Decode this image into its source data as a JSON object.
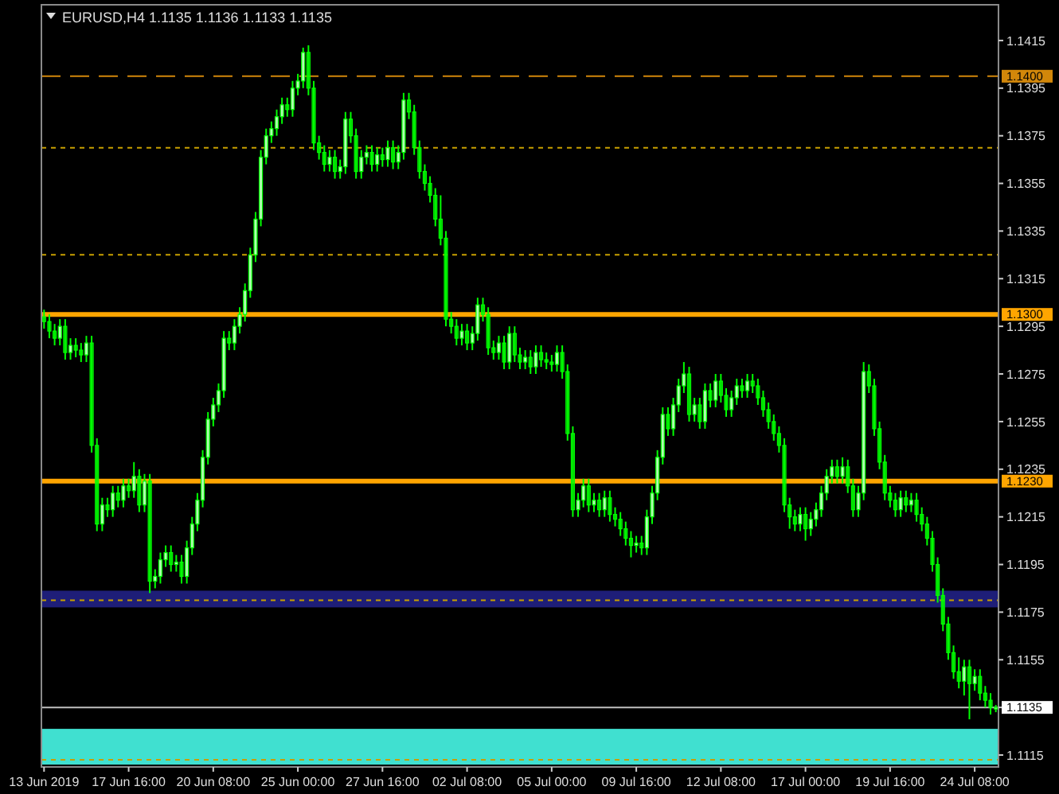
{
  "chart_data": {
    "type": "candlestick",
    "title": "EURUSD,H4  1.1135 1.1136 1.1133 1.1135",
    "categories": [
      "13 Jun 2019",
      null,
      null,
      null,
      null,
      null,
      null,
      null,
      null,
      null,
      null,
      null,
      null,
      null,
      null,
      null,
      "17 Jun 16:00",
      null,
      null,
      null,
      null,
      null,
      null,
      null,
      null,
      null,
      null,
      null,
      null,
      null,
      null,
      null,
      "20 Jun 08:00",
      null,
      null,
      null,
      null,
      null,
      null,
      null,
      null,
      null,
      null,
      null,
      null,
      null,
      null,
      null,
      "25 Jun 00:00",
      null,
      null,
      null,
      null,
      null,
      null,
      null,
      null,
      null,
      null,
      null,
      null,
      null,
      null,
      null,
      "27 Jun 16:00",
      null,
      null,
      null,
      null,
      null,
      null,
      null,
      null,
      null,
      null,
      null,
      null,
      null,
      null,
      null,
      "02 Jul 08:00",
      null,
      null,
      null,
      null,
      null,
      null,
      null,
      null,
      null,
      null,
      null,
      null,
      null,
      null,
      null,
      "05 Jul 00:00",
      null,
      null,
      null,
      null,
      null,
      null,
      null,
      null,
      null,
      null,
      null,
      null,
      null,
      null,
      null,
      "09 Jul 16:00",
      null,
      null,
      null,
      null,
      null,
      null,
      null,
      null,
      null,
      null,
      null,
      null,
      null,
      null,
      null,
      "12 Jul 08:00",
      null,
      null,
      null,
      null,
      null,
      null,
      null,
      null,
      null,
      null,
      null,
      null,
      null,
      null,
      null,
      "17 Jul 00:00",
      null,
      null,
      null,
      null,
      null,
      null,
      null,
      null,
      null,
      null,
      null,
      null,
      null,
      null,
      null,
      "19 Jul 16:00",
      null,
      null,
      null,
      null,
      null,
      null,
      null,
      null,
      null,
      null,
      null,
      null,
      null,
      null,
      null,
      "24 Jul 08:00",
      null,
      null,
      null,
      null
    ],
    "color": "#00ff00",
    "ohlc": [
      [
        1.1299,
        1.1302,
        1.1294,
        1.1297
      ],
      [
        1.1297,
        1.13,
        1.129,
        1.1293
      ],
      [
        1.1293,
        1.1296,
        1.1287,
        1.129
      ],
      [
        1.129,
        1.1298,
        1.1287,
        1.1295
      ],
      [
        1.1295,
        1.1298,
        1.1281,
        1.1284
      ],
      [
        1.1284,
        1.129,
        1.1281,
        1.1287
      ],
      [
        1.1287,
        1.129,
        1.1282,
        1.1285
      ],
      [
        1.1285,
        1.1288,
        1.128,
        1.1283
      ],
      [
        1.1283,
        1.1291,
        1.128,
        1.1288
      ],
      [
        1.1288,
        1.1291,
        1.1242,
        1.1245
      ],
      [
        1.1245,
        1.1248,
        1.1209,
        1.1212
      ],
      [
        1.1212,
        1.1223,
        1.1209,
        1.122
      ],
      [
        1.122,
        1.1223,
        1.1215,
        1.1218
      ],
      [
        1.1218,
        1.1228,
        1.1215,
        1.1225
      ],
      [
        1.1225,
        1.1228,
        1.1219,
        1.1222
      ],
      [
        1.1222,
        1.1231,
        1.1219,
        1.1228
      ],
      [
        1.1228,
        1.1231,
        1.1223,
        1.1226
      ],
      [
        1.1226,
        1.1238,
        1.1223,
        1.1232
      ],
      [
        1.1232,
        1.1235,
        1.1217,
        1.122
      ],
      [
        1.122,
        1.1233,
        1.1217,
        1.123
      ],
      [
        1.123,
        1.1233,
        1.1183,
        1.1188
      ],
      [
        1.1188,
        1.1193,
        1.1185,
        1.119
      ],
      [
        1.119,
        1.12,
        1.1187,
        1.1197
      ],
      [
        1.1197,
        1.1203,
        1.1194,
        1.12
      ],
      [
        1.12,
        1.1203,
        1.1192,
        1.1195
      ],
      [
        1.1195,
        1.1199,
        1.1192,
        1.1196
      ],
      [
        1.1196,
        1.1199,
        1.1187,
        1.119
      ],
      [
        1.119,
        1.1205,
        1.1187,
        1.1202
      ],
      [
        1.1202,
        1.1215,
        1.1199,
        1.1212
      ],
      [
        1.1212,
        1.1225,
        1.1209,
        1.1222
      ],
      [
        1.1222,
        1.1243,
        1.1219,
        1.124
      ],
      [
        1.124,
        1.1259,
        1.1237,
        1.1256
      ],
      [
        1.1256,
        1.1265,
        1.1253,
        1.1262
      ],
      [
        1.1262,
        1.1271,
        1.1259,
        1.1268
      ],
      [
        1.1268,
        1.1293,
        1.1265,
        1.129
      ],
      [
        1.129,
        1.1293,
        1.1285,
        1.1288
      ],
      [
        1.1288,
        1.1298,
        1.1285,
        1.1295
      ],
      [
        1.1295,
        1.1303,
        1.1292,
        1.13
      ],
      [
        1.13,
        1.1313,
        1.1297,
        1.131
      ],
      [
        1.131,
        1.1328,
        1.1307,
        1.1325
      ],
      [
        1.1325,
        1.1343,
        1.1322,
        1.134
      ],
      [
        1.134,
        1.1369,
        1.1337,
        1.1366
      ],
      [
        1.1366,
        1.1378,
        1.1363,
        1.1375
      ],
      [
        1.1375,
        1.1381,
        1.1372,
        1.1378
      ],
      [
        1.1378,
        1.1386,
        1.1375,
        1.1383
      ],
      [
        1.1383,
        1.1391,
        1.138,
        1.1388
      ],
      [
        1.1388,
        1.1391,
        1.1383,
        1.1386
      ],
      [
        1.1386,
        1.1398,
        1.1383,
        1.1395
      ],
      [
        1.1395,
        1.1401,
        1.1392,
        1.1398
      ],
      [
        1.1398,
        1.1412,
        1.1395,
        1.141
      ],
      [
        1.141,
        1.1413,
        1.1392,
        1.1395
      ],
      [
        1.1395,
        1.1398,
        1.1369,
        1.1372
      ],
      [
        1.1372,
        1.1375,
        1.1365,
        1.1368
      ],
      [
        1.1368,
        1.1371,
        1.136,
        1.1363
      ],
      [
        1.1363,
        1.1369,
        1.136,
        1.1366
      ],
      [
        1.1366,
        1.1369,
        1.1357,
        1.136
      ],
      [
        1.136,
        1.1365,
        1.1357,
        1.1362
      ],
      [
        1.1362,
        1.1385,
        1.1359,
        1.1382
      ],
      [
        1.1382,
        1.1385,
        1.1372,
        1.1375
      ],
      [
        1.1375,
        1.1378,
        1.1357,
        1.136
      ],
      [
        1.136,
        1.1369,
        1.1357,
        1.1366
      ],
      [
        1.1366,
        1.1371,
        1.1363,
        1.1368
      ],
      [
        1.1368,
        1.1371,
        1.136,
        1.1363
      ],
      [
        1.1363,
        1.137,
        1.136,
        1.1367
      ],
      [
        1.1367,
        1.137,
        1.1362,
        1.1365
      ],
      [
        1.1365,
        1.1373,
        1.1362,
        1.137
      ],
      [
        1.137,
        1.1373,
        1.1361,
        1.1364
      ],
      [
        1.1364,
        1.1371,
        1.1361,
        1.1368
      ],
      [
        1.1368,
        1.1393,
        1.1365,
        1.139
      ],
      [
        1.139,
        1.1393,
        1.1382,
        1.1385
      ],
      [
        1.1385,
        1.1388,
        1.1367,
        1.137
      ],
      [
        1.137,
        1.1373,
        1.1357,
        1.136
      ],
      [
        1.136,
        1.1363,
        1.1352,
        1.1355
      ],
      [
        1.1355,
        1.1358,
        1.1347,
        1.135
      ],
      [
        1.135,
        1.1353,
        1.1337,
        1.134
      ],
      [
        1.134,
        1.135,
        1.1329,
        1.1332
      ],
      [
        1.1332,
        1.1335,
        1.1295,
        1.1298
      ],
      [
        1.1298,
        1.1301,
        1.1292,
        1.1295
      ],
      [
        1.1295,
        1.1298,
        1.1287,
        1.129
      ],
      [
        1.129,
        1.1296,
        1.1287,
        1.1293
      ],
      [
        1.1293,
        1.1296,
        1.1285,
        1.1288
      ],
      [
        1.1288,
        1.1295,
        1.1285,
        1.1292
      ],
      [
        1.1292,
        1.1307,
        1.1289,
        1.1304
      ],
      [
        1.1304,
        1.1307,
        1.1297,
        1.13
      ],
      [
        1.13,
        1.1303,
        1.1283,
        1.1286
      ],
      [
        1.1286,
        1.1289,
        1.1281,
        1.1284
      ],
      [
        1.1284,
        1.1291,
        1.1281,
        1.1288
      ],
      [
        1.1288,
        1.1291,
        1.1277,
        1.128
      ],
      [
        1.128,
        1.1295,
        1.1277,
        1.1292
      ],
      [
        1.1292,
        1.1295,
        1.128,
        1.1283
      ],
      [
        1.1283,
        1.1286,
        1.1277,
        1.128
      ],
      [
        1.128,
        1.1285,
        1.1277,
        1.1282
      ],
      [
        1.1282,
        1.1285,
        1.1275,
        1.1278
      ],
      [
        1.1278,
        1.1287,
        1.1275,
        1.1284
      ],
      [
        1.1284,
        1.1287,
        1.1278,
        1.1281
      ],
      [
        1.1281,
        1.1284,
        1.1277,
        1.128
      ],
      [
        1.128,
        1.1283,
        1.1276,
        1.1279
      ],
      [
        1.1279,
        1.1287,
        1.1276,
        1.1284
      ],
      [
        1.1284,
        1.1287,
        1.1273,
        1.1276
      ],
      [
        1.1276,
        1.1279,
        1.1247,
        1.125
      ],
      [
        1.125,
        1.1253,
        1.1215,
        1.1218
      ],
      [
        1.1218,
        1.1225,
        1.1215,
        1.1222
      ],
      [
        1.1222,
        1.1231,
        1.1219,
        1.1228
      ],
      [
        1.1228,
        1.1231,
        1.1217,
        1.122
      ],
      [
        1.122,
        1.1225,
        1.1217,
        1.1222
      ],
      [
        1.1222,
        1.1225,
        1.1215,
        1.1218
      ],
      [
        1.1218,
        1.1226,
        1.1215,
        1.1223
      ],
      [
        1.1223,
        1.1226,
        1.1213,
        1.1216
      ],
      [
        1.1216,
        1.1219,
        1.1211,
        1.1214
      ],
      [
        1.1214,
        1.1217,
        1.1207,
        1.121
      ],
      [
        1.121,
        1.1213,
        1.1203,
        1.1206
      ],
      [
        1.1206,
        1.1209,
        1.1198,
        1.1203
      ],
      [
        1.1203,
        1.1207,
        1.12,
        1.1204
      ],
      [
        1.1204,
        1.1207,
        1.1199,
        1.1202
      ],
      [
        1.1202,
        1.1218,
        1.1199,
        1.1215
      ],
      [
        1.1215,
        1.1228,
        1.1212,
        1.1225
      ],
      [
        1.1225,
        1.1243,
        1.1222,
        1.124
      ],
      [
        1.124,
        1.1261,
        1.1237,
        1.1258
      ],
      [
        1.1258,
        1.1261,
        1.1249,
        1.1252
      ],
      [
        1.1252,
        1.1265,
        1.1249,
        1.1262
      ],
      [
        1.1262,
        1.1273,
        1.1259,
        1.127
      ],
      [
        1.127,
        1.128,
        1.1267,
        1.1275
      ],
      [
        1.1275,
        1.1278,
        1.1255,
        1.1258
      ],
      [
        1.1258,
        1.1265,
        1.1255,
        1.1262
      ],
      [
        1.1262,
        1.1265,
        1.1252,
        1.1255
      ],
      [
        1.1255,
        1.1271,
        1.1252,
        1.1268
      ],
      [
        1.1268,
        1.1271,
        1.1261,
        1.1264
      ],
      [
        1.1264,
        1.1275,
        1.1261,
        1.1272
      ],
      [
        1.1272,
        1.1275,
        1.1263,
        1.1266
      ],
      [
        1.1266,
        1.1269,
        1.1257,
        1.126
      ],
      [
        1.126,
        1.1268,
        1.1257,
        1.1265
      ],
      [
        1.1265,
        1.1273,
        1.1262,
        1.127
      ],
      [
        1.127,
        1.1273,
        1.1265,
        1.1268
      ],
      [
        1.1268,
        1.1275,
        1.1265,
        1.1272
      ],
      [
        1.1272,
        1.1275,
        1.1267,
        1.127
      ],
      [
        1.127,
        1.1273,
        1.1262,
        1.1265
      ],
      [
        1.1265,
        1.1268,
        1.1257,
        1.126
      ],
      [
        1.126,
        1.1263,
        1.1252,
        1.1255
      ],
      [
        1.1255,
        1.1258,
        1.1247,
        1.125
      ],
      [
        1.125,
        1.1253,
        1.1242,
        1.1245
      ],
      [
        1.1245,
        1.1248,
        1.1217,
        1.122
      ],
      [
        1.122,
        1.1223,
        1.121,
        1.1215
      ],
      [
        1.1215,
        1.1218,
        1.1209,
        1.1212
      ],
      [
        1.1212,
        1.1219,
        1.1209,
        1.1216
      ],
      [
        1.1216,
        1.1219,
        1.1205,
        1.121
      ],
      [
        1.121,
        1.1217,
        1.1207,
        1.1214
      ],
      [
        1.1214,
        1.1221,
        1.1211,
        1.1218
      ],
      [
        1.1218,
        1.1228,
        1.1215,
        1.1225
      ],
      [
        1.1225,
        1.1235,
        1.1222,
        1.1232
      ],
      [
        1.1232,
        1.1239,
        1.1229,
        1.1236
      ],
      [
        1.1236,
        1.1239,
        1.1229,
        1.1232
      ],
      [
        1.1232,
        1.124,
        1.1229,
        1.1236
      ],
      [
        1.1236,
        1.1239,
        1.1225,
        1.1228
      ],
      [
        1.1228,
        1.1231,
        1.1215,
        1.1218
      ],
      [
        1.1218,
        1.1228,
        1.1215,
        1.1225
      ],
      [
        1.1225,
        1.128,
        1.1222,
        1.1276
      ],
      [
        1.1276,
        1.1279,
        1.1267,
        1.127
      ],
      [
        1.127,
        1.1273,
        1.1249,
        1.1252
      ],
      [
        1.1252,
        1.1255,
        1.1235,
        1.1238
      ],
      [
        1.1238,
        1.1241,
        1.1222,
        1.1225
      ],
      [
        1.1225,
        1.1228,
        1.1219,
        1.1222
      ],
      [
        1.1222,
        1.1225,
        1.1215,
        1.1218
      ],
      [
        1.1218,
        1.1226,
        1.1215,
        1.1223
      ],
      [
        1.1223,
        1.1226,
        1.1217,
        1.122
      ],
      [
        1.122,
        1.1225,
        1.1217,
        1.1222
      ],
      [
        1.1222,
        1.1225,
        1.1213,
        1.1216
      ],
      [
        1.1216,
        1.1219,
        1.1209,
        1.1212
      ],
      [
        1.1212,
        1.1215,
        1.1203,
        1.1206
      ],
      [
        1.1206,
        1.1209,
        1.1192,
        1.1195
      ],
      [
        1.1195,
        1.1198,
        1.1179,
        1.1182
      ],
      [
        1.1182,
        1.1185,
        1.1167,
        1.117
      ],
      [
        1.117,
        1.1173,
        1.1155,
        1.1158
      ],
      [
        1.1158,
        1.1161,
        1.1147,
        1.115
      ],
      [
        1.115,
        1.1156,
        1.1143,
        1.1146
      ],
      [
        1.1146,
        1.1155,
        1.114,
        1.1152
      ],
      [
        1.1152,
        1.1155,
        1.113,
        1.1145
      ],
      [
        1.1145,
        1.1151,
        1.1142,
        1.1148
      ],
      [
        1.1148,
        1.1151,
        1.1138,
        1.1141
      ],
      [
        1.1141,
        1.1144,
        1.1135,
        1.1138
      ],
      [
        1.1138,
        1.1141,
        1.1132,
        1.1135
      ],
      [
        1.1135,
        1.1136,
        1.1133,
        1.1135
      ]
    ],
    "ylim": [
      1.111,
      1.143
    ],
    "yticks": [
      1.1115,
      1.1135,
      1.1155,
      1.1175,
      1.1195,
      1.1215,
      1.1235,
      1.1255,
      1.1275,
      1.1295,
      1.1315,
      1.1335,
      1.1355,
      1.1375,
      1.1395,
      1.1415
    ],
    "grid": false,
    "ref_lines": [
      {
        "axis": "y",
        "value": 1.14,
        "label": "1.1400",
        "color": "#d2870a",
        "line_style": "dashed"
      },
      {
        "axis": "y",
        "value": 1.137,
        "color": "#c8a000",
        "line_style": "dotted"
      },
      {
        "axis": "y",
        "value": 1.1325,
        "color": "#c8a000",
        "line_style": "dotted"
      },
      {
        "axis": "y",
        "value": 1.13,
        "label": "1.1300",
        "color": "#ffa500",
        "line_style": "solid"
      },
      {
        "axis": "y",
        "value": 1.123,
        "label": "1.1230",
        "color": "#ffa500",
        "line_style": "solid"
      },
      {
        "axis": "y",
        "value": 1.118,
        "color": "#c8a000",
        "line_style": "dotted"
      },
      {
        "axis": "y",
        "value": 1.1135,
        "label": "1.1135",
        "color": "#c0c0c0",
        "line_style": "solid"
      },
      {
        "axis": "y",
        "value": 1.1113,
        "color": "#c8a000",
        "line_style": "dotted"
      }
    ],
    "bands": [
      {
        "axis": "y",
        "from": 1.1177,
        "to": 1.1184,
        "color": "#1e1e78"
      },
      {
        "axis": "y",
        "from": 1.1111,
        "to": 1.1126,
        "color": "#40e0d0"
      }
    ]
  }
}
